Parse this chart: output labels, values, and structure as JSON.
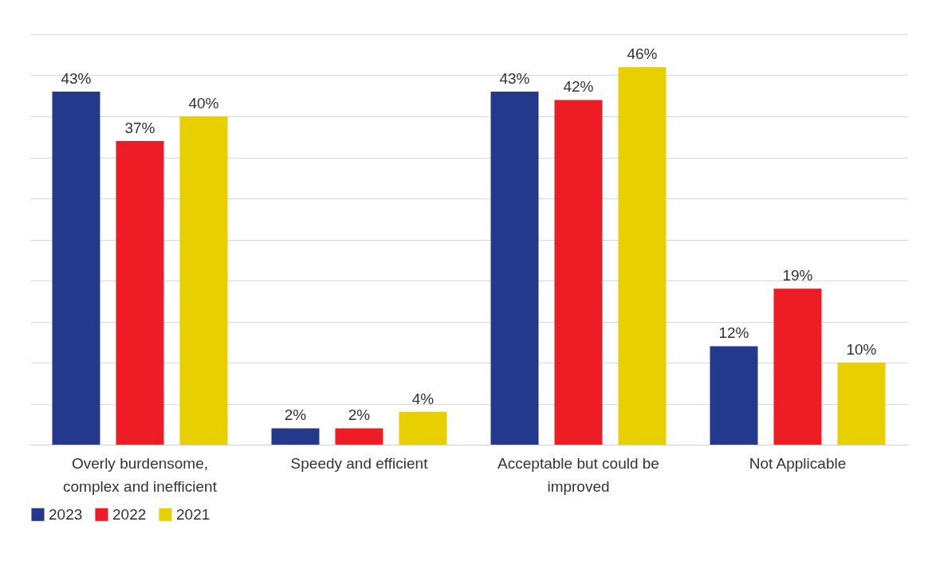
{
  "chart_data": {
    "type": "bar",
    "categories": [
      "Overly burdensome, complex and inefficient",
      "Speedy and efficient",
      "Acceptable but could be improved",
      "Not Applicable"
    ],
    "series": [
      {
        "name": "2023",
        "color": "#233a8c",
        "values": [
          43,
          2,
          43,
          12
        ],
        "value_labels": [
          "43%",
          "2%",
          "43%",
          "12%"
        ]
      },
      {
        "name": "2022",
        "color": "#ee1c25",
        "values": [
          37,
          2,
          42,
          19
        ],
        "value_labels": [
          "37%",
          "2%",
          "42%",
          "19%"
        ]
      },
      {
        "name": "2021",
        "color": "#e8d000",
        "values": [
          40,
          4,
          46,
          10
        ],
        "value_labels": [
          "40%",
          "4%",
          "46%",
          "10%"
        ]
      }
    ],
    "ylim": [
      0,
      50
    ],
    "yticks": [
      {
        "value": 0,
        "label": null
      },
      {
        "value": 5,
        "label": null
      },
      {
        "value": 10,
        "label": null
      },
      {
        "value": 15,
        "label": null
      },
      {
        "value": 20,
        "label": null
      },
      {
        "value": 25,
        "label": null
      },
      {
        "value": 30,
        "label": null
      },
      {
        "value": 35,
        "label": null
      },
      {
        "value": 40,
        "label": null
      },
      {
        "value": 45,
        "label": null
      },
      {
        "value": 50,
        "label": null
      }
    ],
    "grid": "y",
    "legend": "bottom",
    "tick_labels": "x"
  }
}
